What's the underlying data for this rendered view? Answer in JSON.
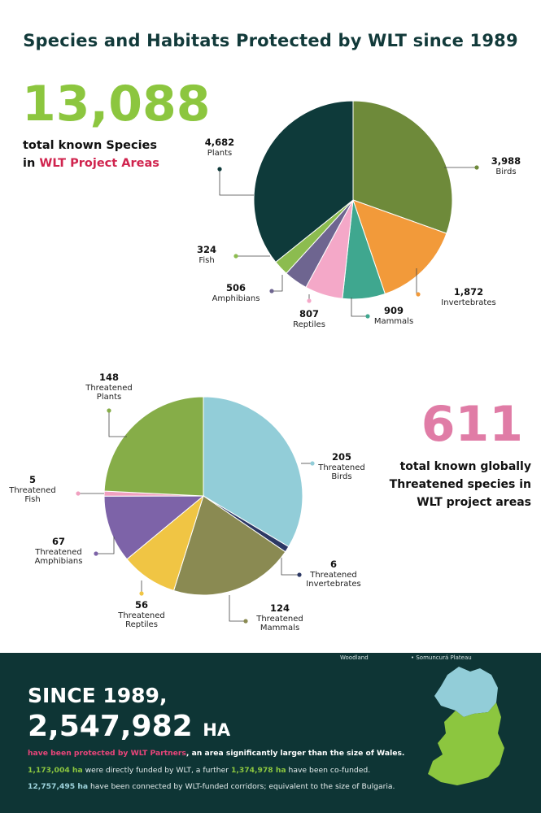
{
  "title": "Species and Habitats Protected by WLT since 1989",
  "species": {
    "total": "13,088",
    "desc_line1": "total known Species",
    "desc_line2_pre": "in ",
    "desc_line2_accent": "WLT Project Areas"
  },
  "threatened": {
    "total": "611",
    "desc_line1": "total known globally",
    "desc_line2": "Threatened species in",
    "desc_line3": "WLT project areas"
  },
  "chart_data": [
    {
      "type": "pie",
      "title": "",
      "slices": [
        {
          "name": "Birds",
          "label_lines": [
            "Birds"
          ],
          "value": 3988,
          "value_label": "3,988",
          "color": "#6e8a3a"
        },
        {
          "name": "Invertebrates",
          "label_lines": [
            "Invertebrates"
          ],
          "value": 1872,
          "value_label": "1,872",
          "color": "#f29a3a"
        },
        {
          "name": "Mammals",
          "label_lines": [
            "Mammals"
          ],
          "value": 909,
          "value_label": "909",
          "color": "#3fa78f"
        },
        {
          "name": "Reptiles",
          "label_lines": [
            "Reptiles"
          ],
          "value": 807,
          "value_label": "807",
          "color": "#f4a8c8"
        },
        {
          "name": "Amphibians",
          "label_lines": [
            "Amphibians"
          ],
          "value": 506,
          "value_label": "506",
          "color": "#6e6590"
        },
        {
          "name": "Fish",
          "label_lines": [
            "Fish"
          ],
          "value": 324,
          "value_label": "324",
          "color": "#8cbc4f"
        },
        {
          "name": "Plants",
          "label_lines": [
            "Plants"
          ],
          "value": 4682,
          "value_label": "4,682",
          "color": "#0e3a3a"
        }
      ]
    },
    {
      "type": "pie",
      "title": "",
      "slices": [
        {
          "name": "Threatened Birds",
          "label_lines": [
            "Threatened",
            "Birds"
          ],
          "value": 205,
          "value_label": "205",
          "color": "#92cdd8"
        },
        {
          "name": "Threatened Invertebrates",
          "label_lines": [
            "Threatened",
            "Invertebrates"
          ],
          "value": 6,
          "value_label": "6",
          "color": "#2c3864"
        },
        {
          "name": "Threatened Mammals",
          "label_lines": [
            "Threatened",
            "Mammals"
          ],
          "value": 124,
          "value_label": "124",
          "color": "#8a8a52"
        },
        {
          "name": "Threatened Reptiles",
          "label_lines": [
            "Threatened",
            "Reptiles"
          ],
          "value": 56,
          "value_label": "56",
          "color": "#f0c544"
        },
        {
          "name": "Threatened Amphibians",
          "label_lines": [
            "Threatened",
            "Amphibians"
          ],
          "value": 67,
          "value_label": "67",
          "color": "#7d63a8"
        },
        {
          "name": "Threatened Fish",
          "label_lines": [
            "Threatened",
            "Fish"
          ],
          "value": 5,
          "value_label": "5",
          "color": "#f0a0c0"
        },
        {
          "name": "Threatened Plants",
          "label_lines": [
            "Threatened",
            "Plants"
          ],
          "value": 148,
          "value_label": "148",
          "color": "#86ad48"
        }
      ]
    }
  ],
  "panel": {
    "top_left": "Woodland",
    "top_right": "Somuncurá Plateau",
    "since": "SINCE 1989,",
    "area_value": "2,547,982",
    "area_unit": "HA",
    "note1_pink": "have been protected  by WLT Partners",
    "note1_rest": ", an area significantly larger than the size of Wales.",
    "note2_a": "1,173,004 ha",
    "note2_b": " were directly funded by WLT, a further ",
    "note2_c": "1,374,978 ha",
    "note2_d": " have been co-funded.",
    "note3_a": "12,757,495 ha",
    "note3_b": " have been connected by WLT-funded corridors; equivalent to the size of Bulgaria.",
    "map_colors": {
      "north": "#92cdd8",
      "south": "#8cc63f"
    }
  }
}
